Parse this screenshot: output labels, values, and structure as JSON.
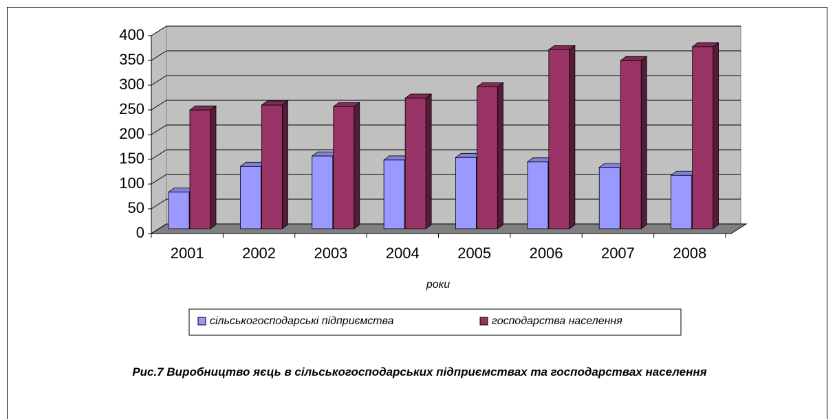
{
  "chart_data": {
    "type": "bar3d",
    "title": "Рис.7 Виробництво яєць в сільськогосподарських підприємствах та господарствах населення",
    "x_label": "роки",
    "categories": [
      "2001",
      "2002",
      "2003",
      "2004",
      "2005",
      "2006",
      "2007",
      "2008"
    ],
    "series": [
      {
        "name": "сільськогосподарські підприємства",
        "color": "#9999ff",
        "values": [
          74,
          126,
          147,
          139,
          144,
          135,
          124,
          108
        ]
      },
      {
        "name": "господарства населення",
        "color": "#993366",
        "values": [
          240,
          250,
          247,
          264,
          287,
          362,
          340,
          368
        ]
      }
    ],
    "ylim": [
      0,
      400
    ],
    "yticks": [
      0,
      50,
      100,
      150,
      200,
      250,
      300,
      350,
      400
    ],
    "grid": true,
    "legend": "bottom"
  }
}
